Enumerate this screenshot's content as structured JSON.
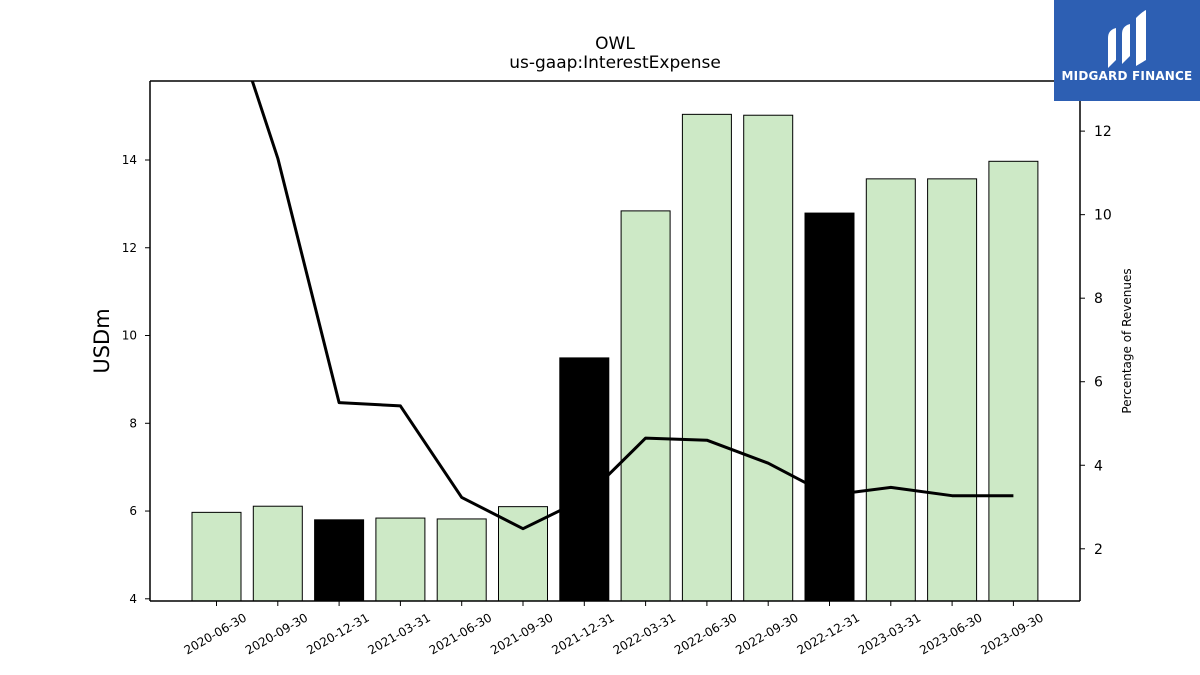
{
  "chart_data": {
    "type": "bar",
    "title": "OWL",
    "subtitle": "us-gaap:InterestExpense",
    "ylabel": "USDm",
    "y2label": "Percentage of Revenues",
    "categories": [
      "2020-06-30",
      "2020-09-30",
      "2020-12-31",
      "2021-03-31",
      "2021-06-30",
      "2021-09-30",
      "2021-12-31",
      "2022-03-31",
      "2022-06-30",
      "2022-09-30",
      "2022-12-31",
      "2023-03-31",
      "2023-06-30",
      "2023-09-30"
    ],
    "values": [
      5.97,
      6.11,
      5.8,
      5.84,
      5.82,
      6.1,
      9.49,
      12.84,
      15.04,
      15.02,
      12.79,
      13.57,
      13.57,
      13.97
    ],
    "bar_colors": [
      "#cde9c6",
      "#cde9c6",
      "#000000",
      "#cde9c6",
      "#cde9c6",
      "#cde9c6",
      "#000000",
      "#cde9c6",
      "#cde9c6",
      "#cde9c6",
      "#000000",
      "#cde9c6",
      "#cde9c6",
      "#cde9c6"
    ],
    "ylim": [
      3.95,
      15.8
    ],
    "yticks": [
      "4",
      "6",
      "8",
      "10",
      "12",
      "14"
    ],
    "line": {
      "values": [
        15.8,
        11.35,
        5.5,
        5.42,
        3.23,
        2.48,
        3.2,
        4.65,
        4.6,
        4.05,
        3.28,
        3.47,
        3.27,
        3.27
      ],
      "color": "#000000"
    },
    "y2lim": [
      0.75,
      13.2
    ],
    "y2ticks": [
      "2",
      "4",
      "6",
      "8",
      "10",
      "12"
    ],
    "grid": false
  },
  "logo": {
    "text": "MIDGARD FINANCE",
    "color": "#2d5fb3"
  }
}
